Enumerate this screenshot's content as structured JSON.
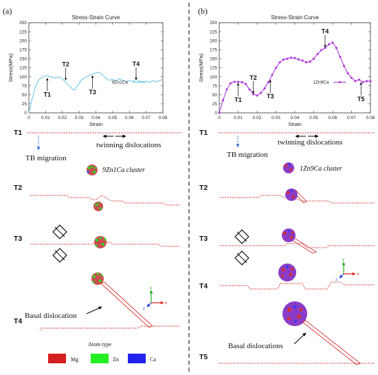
{
  "figure": {
    "panel_a_label": "(a)",
    "panel_b_label": "(b)",
    "row_labels_a": [
      "T1",
      "T2",
      "T3",
      "T4"
    ],
    "row_labels_b": [
      "T1",
      "T2",
      "T3",
      "T4",
      "T5"
    ],
    "twinning_label": "twinning dislocations",
    "tb_migration_label": "TB migration",
    "cluster_a_label": "9Zn1Ca cluster",
    "cluster_b_label": "1Zn9Ca cluster",
    "basal_a_label": "Basal dislocation",
    "basal_b_label": "Basal dislocations",
    "axis_x_label": "x",
    "axis_y_label": "y",
    "axis_z_label": "z",
    "atom_legend": {
      "title": "Atom type",
      "items": [
        {
          "label": "Mg",
          "color": "#d42020"
        },
        {
          "label": "Zn",
          "color": "#22ee22"
        },
        {
          "label": "Ca",
          "color": "#2222ee"
        }
      ]
    }
  },
  "chart_data": [
    {
      "type": "line",
      "title": "Stress-Strain Curve",
      "xlabel": "Strain",
      "ylabel": "Stress(MPa)",
      "xlim": [
        0,
        0.08
      ],
      "ylim": [
        0,
        250
      ],
      "xticks": [
        "0",
        "0.01",
        "0.02",
        "0.03",
        "0.04",
        "0.05",
        "0.06",
        "0.07",
        "0.08"
      ],
      "yticks": [
        "0",
        "25",
        "50",
        "75",
        "100",
        "125",
        "150",
        "175",
        "200",
        "225",
        "250"
      ],
      "legend_position": "center-right",
      "grid": false,
      "series": [
        {
          "name": "9Zn1Ca",
          "color": "#6ec6e8",
          "marker": "none",
          "x": [
            0,
            0.002,
            0.004,
            0.006,
            0.008,
            0.01,
            0.012,
            0.014,
            0.016,
            0.018,
            0.02,
            0.022,
            0.024,
            0.026,
            0.027,
            0.028,
            0.03,
            0.032,
            0.034,
            0.036,
            0.038,
            0.04,
            0.042,
            0.044,
            0.046,
            0.048,
            0.05,
            0.052,
            0.054,
            0.056,
            0.058,
            0.06,
            0.062,
            0.064,
            0.066,
            0.068,
            0.07,
            0.072,
            0.074,
            0.076,
            0.078,
            0.08
          ],
          "y": [
            0,
            40,
            75,
            92,
            99,
            103,
            102,
            98,
            97,
            100,
            94,
            85,
            76,
            66,
            63,
            68,
            82,
            94,
            99,
            103,
            107,
            111,
            113,
            105,
            96,
            90,
            93,
            88,
            95,
            90,
            87,
            90,
            86,
            93,
            88,
            86,
            88,
            84,
            89,
            86,
            90,
            92
          ]
        }
      ],
      "annotations": [
        {
          "label": "T1",
          "x": 0.011,
          "y": 100
        },
        {
          "label": "T2",
          "x": 0.022,
          "y": 87
        },
        {
          "label": "T3",
          "x": 0.038,
          "y": 107
        },
        {
          "label": "T4",
          "x": 0.064,
          "y": 88
        }
      ]
    },
    {
      "type": "line",
      "title": "Stress-Strain Curve",
      "xlabel": "Strain",
      "ylabel": "Stress(MPa)",
      "xlim": [
        0,
        0.08
      ],
      "ylim": [
        0,
        250
      ],
      "xticks": [
        "0",
        "0.01",
        "0.02",
        "0.03",
        "0.04",
        "0.05",
        "0.06",
        "0.07",
        "0.08"
      ],
      "yticks": [
        "0",
        "25",
        "50",
        "75",
        "100",
        "125",
        "150",
        "175",
        "200",
        "225",
        "250"
      ],
      "legend_position": "center-right",
      "grid": false,
      "series": [
        {
          "name": "1Zn9Ca",
          "color": "#b13cdd",
          "marker": "circle",
          "x": [
            0,
            0.002,
            0.004,
            0.006,
            0.008,
            0.01,
            0.012,
            0.014,
            0.016,
            0.018,
            0.02,
            0.022,
            0.024,
            0.026,
            0.028,
            0.03,
            0.032,
            0.034,
            0.036,
            0.038,
            0.04,
            0.042,
            0.044,
            0.046,
            0.048,
            0.05,
            0.052,
            0.054,
            0.056,
            0.058,
            0.06,
            0.062,
            0.064,
            0.066,
            0.068,
            0.07,
            0.072,
            0.074,
            0.076,
            0.078,
            0.08
          ],
          "y": [
            0,
            35,
            65,
            82,
            86,
            86,
            85,
            80,
            65,
            52,
            48,
            55,
            68,
            85,
            105,
            125,
            140,
            148,
            150,
            153,
            152,
            148,
            145,
            140,
            142,
            150,
            163,
            174,
            180,
            190,
            195,
            180,
            155,
            130,
            110,
            97,
            88,
            92,
            85,
            88,
            88
          ]
        }
      ],
      "annotations": [
        {
          "label": "T1",
          "x": 0.01,
          "y": 86
        },
        {
          "label": "T2",
          "x": 0.018,
          "y": 50
        },
        {
          "label": "T3",
          "x": 0.027,
          "y": 95
        },
        {
          "label": "T4",
          "x": 0.056,
          "y": 178
        },
        {
          "label": "T5",
          "x": 0.075,
          "y": 88
        }
      ]
    }
  ]
}
